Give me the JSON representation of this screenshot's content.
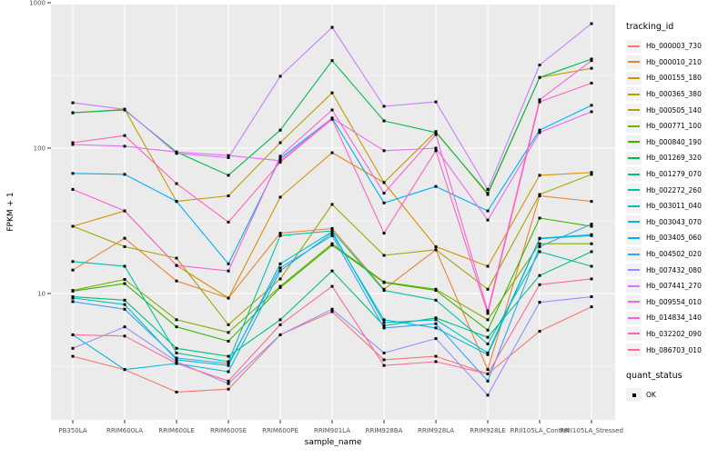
{
  "figure": {
    "x_axis_title": "sample_name",
    "y_axis_title": "FPKM + 1",
    "legend_tracking_title": "tracking_id",
    "legend_quant_title": "quant_status",
    "quant_ok_label": "OK"
  },
  "style": {
    "panel_bg": "#ebebeb",
    "grid_color": "#ffffff",
    "tick_text_color": "#4d4d4d",
    "tick_mark_color": "#333333",
    "point_color": "#000000",
    "legend_key_bg": "#f2f2f2"
  },
  "chart_data": {
    "type": "line",
    "title": "",
    "xlabel": "sample_name",
    "ylabel": "FPKM + 1",
    "y_scale": "log10",
    "ylim": [
      1.3,
      1050
    ],
    "y_major_ticks": [
      10,
      100,
      1000
    ],
    "y_minor_ticks": [
      3.162,
      31.62,
      316.2
    ],
    "grid": true,
    "legend_position": "right",
    "point_shape": "filled-square-black",
    "quant_status": "OK",
    "categories": [
      "PB350LA",
      "RRIM600LA",
      "RRIM600LE",
      "RRIM600SE",
      "RRIM600PE",
      "RRIM901LA",
      "RRIM928BA",
      "RRIM928LA",
      "RRIM928LE",
      "RRII105LA_Control",
      "RRII105LA_Stressed"
    ],
    "series": [
      {
        "name": "Hb_000003_730",
        "color": "#F8766D",
        "values": [
          3.7,
          3.0,
          2.1,
          2.2,
          5.2,
          7.5,
          3.5,
          3.7,
          2.8,
          5.5,
          8.1
        ]
      },
      {
        "name": "Hb_000010_210",
        "color": "#EA8331",
        "values": [
          14.5,
          24,
          12.2,
          9.3,
          26,
          28,
          10.7,
          20,
          3.0,
          47,
          43
        ]
      },
      {
        "name": "Hb_000155_180",
        "color": "#D89000",
        "values": [
          29,
          37,
          15.6,
          9.3,
          46,
          93,
          58,
          21,
          15.4,
          65,
          68
        ]
      },
      {
        "name": "Hb_000365_380",
        "color": "#C09B00",
        "values": [
          175,
          185,
          43,
          47,
          109,
          240,
          58,
          130,
          48,
          306,
          354
        ]
      },
      {
        "name": "Hb_000505_140",
        "color": "#A3A500",
        "values": [
          29,
          21,
          17.5,
          6.1,
          12.6,
          41,
          18.3,
          20,
          10.7,
          48,
          66
        ]
      },
      {
        "name": "Hb_000771_100",
        "color": "#7CAE00",
        "values": [
          10.5,
          12.5,
          6.6,
          5.4,
          11.2,
          22,
          12,
          10.7,
          6.6,
          22,
          22
        ]
      },
      {
        "name": "Hb_000840_190",
        "color": "#39B600",
        "values": [
          10.4,
          11.7,
          5.9,
          4.7,
          11,
          21.5,
          11.9,
          10.5,
          5.6,
          33,
          29
        ]
      },
      {
        "name": "Hb_001269_320",
        "color": "#00BB4E",
        "values": [
          175,
          183,
          94,
          65,
          133,
          400,
          154,
          128,
          49,
          306,
          410
        ]
      },
      {
        "name": "Hb_001279_070",
        "color": "#00BF7D",
        "values": [
          9.5,
          9.0,
          4.2,
          3.7,
          6.6,
          14.3,
          6.0,
          6.8,
          5.0,
          13.3,
          19.4
        ]
      },
      {
        "name": "Hb_002272_260",
        "color": "#00C1A3",
        "values": [
          16.6,
          15.4,
          3.9,
          3.4,
          25,
          27,
          10.5,
          9.0,
          4.5,
          19.4,
          15.4
        ]
      },
      {
        "name": "Hb_003011_040",
        "color": "#00BFC4",
        "values": [
          9.3,
          8.4,
          3.5,
          3.2,
          16,
          26.6,
          6.3,
          6.6,
          3.9,
          24,
          25.4
        ]
      },
      {
        "name": "Hb_003043_070",
        "color": "#00BAE0",
        "values": [
          5.2,
          3.0,
          3.3,
          2.9,
          14.3,
          26,
          6.6,
          5.8,
          3.8,
          23.8,
          25
        ]
      },
      {
        "name": "Hb_003405_060",
        "color": "#00B0F6",
        "values": [
          67,
          66,
          43,
          16,
          85,
          161,
          42,
          54.5,
          37,
          133,
          197
        ]
      },
      {
        "name": "Hb_004502_020",
        "color": "#35A2FF",
        "values": [
          8.8,
          7.8,
          3.6,
          3.3,
          15,
          25,
          5.8,
          6.2,
          2.5,
          21,
          30
        ]
      },
      {
        "name": "Hb_007432_080",
        "color": "#9590FF",
        "values": [
          4.2,
          5.9,
          3.4,
          2.4,
          5.2,
          7.8,
          3.9,
          4.9,
          2.0,
          8.7,
          9.5
        ]
      },
      {
        "name": "Hb_007441_270",
        "color": "#C77CFF",
        "values": [
          205,
          185,
          92,
          86,
          312,
          677,
          194,
          208,
          52,
          373,
          718
        ]
      },
      {
        "name": "Hb_009554_010",
        "color": "#E76BF3",
        "values": [
          106,
          103,
          94,
          89,
          82,
          161,
          96,
          100,
          32,
          128,
          178
        ]
      },
      {
        "name": "Hb_014834_140",
        "color": "#FA62DB",
        "values": [
          52,
          37,
          15.6,
          14.3,
          88,
          183,
          49,
          124,
          7.6,
          215,
          400
        ]
      },
      {
        "name": "Hb_032202_090",
        "color": "#FF62BC",
        "values": [
          109,
          122,
          57,
          31,
          80,
          158,
          26,
          96,
          7.3,
          208,
          280
        ]
      },
      {
        "name": "Hb_086703_010",
        "color": "#FF6A98",
        "values": [
          5.2,
          5.1,
          3.3,
          2.5,
          6.1,
          11.2,
          3.2,
          3.4,
          2.8,
          11.5,
          12.6
        ]
      }
    ]
  }
}
